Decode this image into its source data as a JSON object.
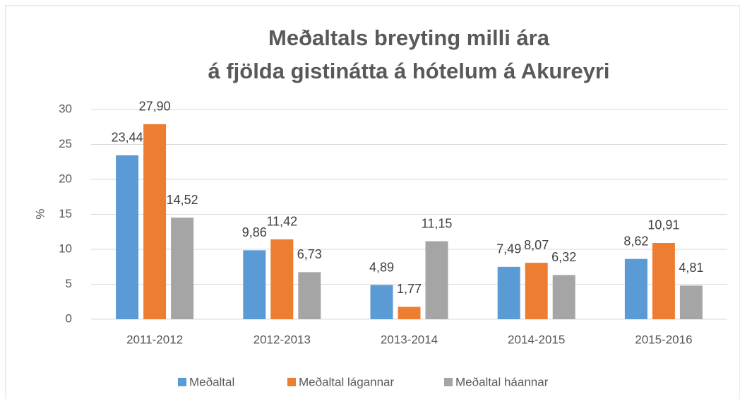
{
  "chart_data": {
    "type": "bar",
    "title": [
      "Meðaltals breyting milli ára",
      "á fjölda gistinátta á hótelum á Akureyri"
    ],
    "y_label": "%",
    "categories": [
      "2011-2012",
      "2012-2013",
      "2013-2014",
      "2014-2015",
      "2015-2016"
    ],
    "series": [
      {
        "name": "Meðaltal",
        "color": "#5b9bd5",
        "values": [
          23.44,
          9.86,
          4.89,
          7.49,
          8.62
        ],
        "value_labels": [
          "23,44",
          "9,86",
          "4,89",
          "7,49",
          "8,62"
        ]
      },
      {
        "name": "Meðaltal lágannar",
        "color": "#ed7d31",
        "values": [
          27.9,
          11.42,
          1.77,
          8.07,
          10.91
        ],
        "value_labels": [
          "27,90",
          "11,42",
          "1,77",
          "8,07",
          "10,91"
        ]
      },
      {
        "name": "Meðaltal háannar",
        "color": "#a5a5a5",
        "values": [
          14.52,
          6.73,
          11.15,
          6.32,
          4.81
        ],
        "value_labels": [
          "14,52",
          "6,73",
          "11,15",
          "6,32",
          "4,81"
        ]
      }
    ],
    "ylim": [
      0,
      30
    ],
    "yticks": [
      0,
      5,
      10,
      15,
      20,
      25,
      30
    ],
    "grid": true,
    "legend": "bottom"
  }
}
